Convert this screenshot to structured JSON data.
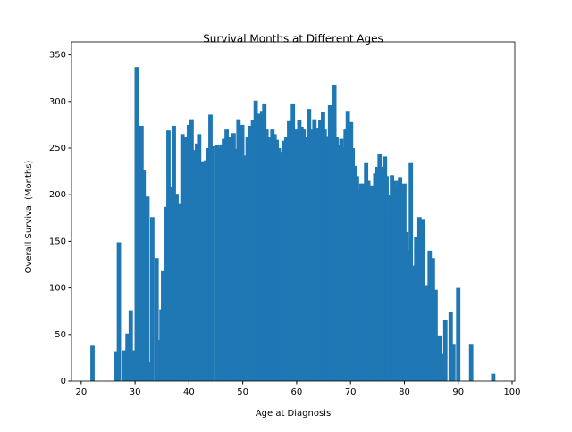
{
  "chart_data": {
    "type": "bar",
    "title": "Survival Months at Different Ages",
    "xlabel": "Age at Diagnosis",
    "ylabel": "Overall Survival (Months)",
    "color": "#1f77b4",
    "grid": false,
    "x": [
      22.1,
      26.5,
      27,
      28,
      28.6,
      29.2,
      29.7,
      30.3,
      30.8,
      31.2,
      31.6,
      32,
      32.3,
      32.6,
      33.2,
      34,
      34.7,
      34.9,
      35.2,
      35.7,
      36.2,
      36.7,
      37.2,
      37.7,
      38.3,
      38.8,
      39.3,
      40,
      40.5,
      41.1,
      41.5,
      41.9,
      42.6,
      43.2,
      43.6,
      44,
      44.5,
      45.3,
      45.7,
      46.1,
      46.5,
      47,
      47.4,
      47.8,
      48.3,
      48.9,
      49.2,
      49.9,
      50.5,
      50.9,
      51.4,
      51.9,
      52.4,
      52.8,
      53.2,
      53.6,
      54,
      54.4,
      54.7,
      55.1,
      55.5,
      55.9,
      56.3,
      56.7,
      57,
      57.6,
      58.1,
      58.6,
      59.3,
      59.7,
      60.1,
      60.5,
      60.9,
      61.3,
      61.8,
      62.3,
      62.8,
      63.3,
      63.9,
      64.4,
      64.9,
      65.2,
      65.6,
      66.2,
      66.6,
      67,
      67.4,
      67.9,
      68.3,
      68.7,
      69.1,
      69.5,
      70.1,
      70.4,
      70.8,
      71.2,
      71.6,
      72,
      72.3,
      72.9,
      73.3,
      73.7,
      74.1,
      74.6,
      75,
      75.4,
      75.9,
      76.4,
      76.7,
      77.1,
      77.4,
      77.7,
      78.1,
      78.5,
      78.9,
      79.2,
      79.6,
      80,
      80.4,
      80.7,
      81.2,
      81.7,
      82.2,
      82.8,
      83.1,
      83.5,
      84.1,
      84.7,
      85.3,
      85.8,
      86.5,
      87,
      87.6,
      88.6,
      89.1,
      90,
      92.4,
      96.5
    ],
    "values": [
      38,
      32,
      149,
      33,
      51,
      76,
      33,
      337,
      46,
      274,
      226,
      170,
      198,
      20,
      176,
      132,
      44,
      77,
      118,
      187,
      269,
      209,
      274,
      201,
      191,
      265,
      262,
      275,
      281,
      248,
      255,
      265,
      236,
      237,
      250,
      286,
      252,
      253,
      250,
      254,
      260,
      270,
      262,
      258,
      266,
      249,
      281,
      275,
      242,
      262,
      274,
      280,
      301,
      285,
      287,
      290,
      298,
      270,
      259,
      262,
      270,
      265,
      259,
      250,
      246,
      258,
      262,
      279,
      298,
      270,
      268,
      280,
      273,
      270,
      262,
      292,
      270,
      281,
      272,
      280,
      289,
      270,
      263,
      296,
      270,
      318,
      262,
      253,
      260,
      251,
      270,
      290,
      278,
      250,
      231,
      220,
      205,
      212,
      212,
      234,
      215,
      204,
      210,
      223,
      230,
      244,
      230,
      241,
      220,
      178,
      200,
      221,
      215,
      209,
      215,
      219,
      205,
      212,
      160,
      140,
      234,
      124,
      155,
      176,
      160,
      174,
      103,
      140,
      132,
      98,
      49,
      29,
      66,
      74,
      40,
      100,
      40,
      8
    ],
    "xlim": [
      18.2,
      100.5
    ],
    "ylim": [
      0,
      364
    ],
    "xticks": [
      20,
      30,
      40,
      50,
      60,
      70,
      80,
      90,
      100
    ],
    "yticks": [
      0,
      50,
      100,
      150,
      200,
      250,
      300,
      350
    ]
  }
}
